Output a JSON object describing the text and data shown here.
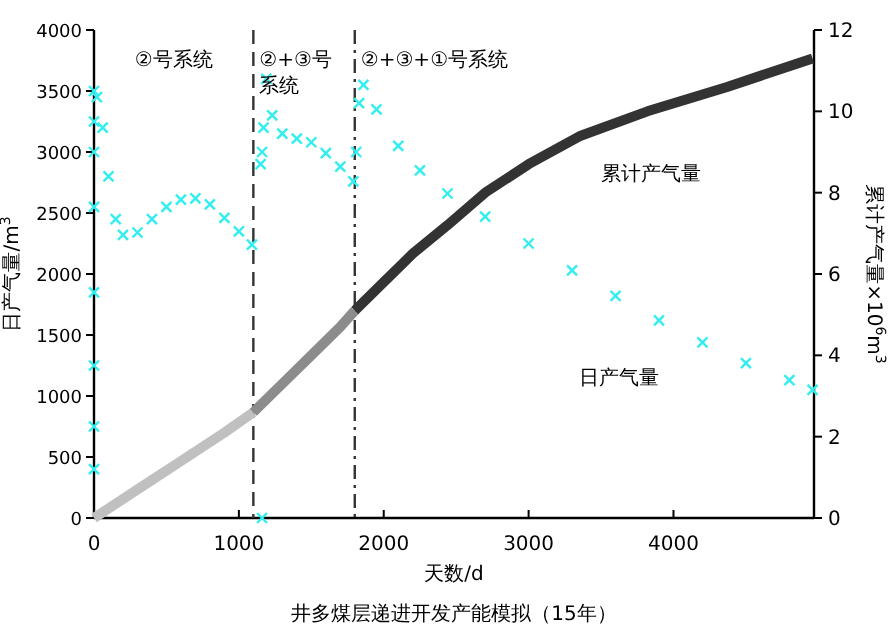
{
  "chart_data": {
    "type": "scatter",
    "xlabel": "天数/d",
    "ylabel": "日产气量/m$^{3}$",
    "y2label": "累计产气量×10$^{6}$m$^{3}$",
    "xlim": [
      0,
      4970
    ],
    "ylim": [
      0,
      4000
    ],
    "y2lim": [
      0,
      12
    ],
    "xticks": [
      0,
      1000,
      2000,
      3000,
      4000
    ],
    "yticks": [
      0,
      500,
      1000,
      1500,
      2000,
      2500,
      3000,
      3500,
      4000
    ],
    "y2ticks": [
      0,
      2,
      4,
      6,
      8,
      10,
      12
    ],
    "ref_lines": [
      {
        "axis": "x",
        "value": 1100,
        "color": "#333333",
        "line_style": "dashed"
      },
      {
        "axis": "x",
        "value": 1800,
        "color": "#333333",
        "line_style": "dashdot"
      }
    ],
    "annotations": [
      "②号系统",
      "②+③号系统",
      "②+③+①号系统",
      "井多煤层递进开发产能模拟（15年）"
    ],
    "series": [
      {
        "name": "日产气量",
        "marker": "cross",
        "color": "#33eeee",
        "axis": "y",
        "x": [
          0,
          0,
          0,
          0,
          0,
          0,
          0,
          0,
          20,
          60,
          100,
          150,
          200,
          300,
          400,
          500,
          600,
          700,
          800,
          900,
          1000,
          1090,
          1160,
          1150,
          1160,
          1170,
          1190,
          1230,
          1300,
          1400,
          1500,
          1600,
          1700,
          1790,
          1810,
          1830,
          1860,
          1950,
          2100,
          2250,
          2440,
          2700,
          3000,
          3300,
          3600,
          3900,
          4200,
          4500,
          4800,
          4960
        ],
        "values": [
          400,
          750,
          1250,
          1850,
          2550,
          3000,
          3250,
          3500,
          3450,
          3200,
          2800,
          2450,
          2320,
          2340,
          2450,
          2550,
          2610,
          2620,
          2570,
          2460,
          2350,
          2240,
          0,
          2900,
          3000,
          3200,
          3600,
          3300,
          3150,
          3110,
          3080,
          2990,
          2880,
          2760,
          3000,
          3400,
          3550,
          3350,
          3050,
          2850,
          2660,
          2470,
          2250,
          2030,
          1820,
          1620,
          1440,
          1270,
          1130,
          1050
        ]
      },
      {
        "type": "line",
        "color": "#c0c0c0",
        "axis": "y2",
        "x": [
          0,
          300,
          600,
          900,
          1100
        ],
        "values": [
          0,
          0.7,
          1.4,
          2.1,
          2.6
        ]
      },
      {
        "type": "line",
        "color": "#8c8c8c",
        "axis": "y2",
        "x": [
          1100,
          1300,
          1500,
          1700,
          1800
        ],
        "values": [
          2.6,
          3.3,
          4.0,
          4.7,
          5.1
        ]
      },
      {
        "name": "累计产气量",
        "type": "line",
        "color": "#333333",
        "axis": "y2",
        "x": [
          1800,
          2000,
          2200,
          2440,
          2700,
          3000,
          3360,
          3820,
          4370,
          4960
        ],
        "values": [
          5.1,
          5.8,
          6.5,
          7.2,
          8.0,
          8.7,
          9.4,
          10.0,
          10.6,
          11.3
        ]
      }
    ]
  }
}
